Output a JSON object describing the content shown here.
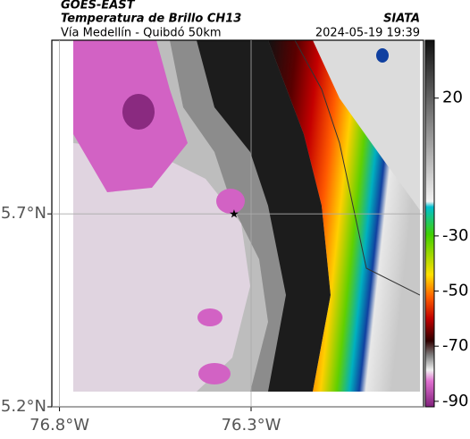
{
  "header": {
    "title": "GOES-EAST",
    "subtitle": "Temperatura de Brillo CH13",
    "location": "Vía Medellín - Quibdó 50km",
    "source": "SIATA",
    "datetime": "2024-05-19 19:39"
  },
  "map": {
    "xlim": [
      -76.82,
      -75.85
    ],
    "ylim": [
      5.2,
      6.15
    ],
    "xticks": [
      {
        "value": -76.8,
        "label": "76.8°W"
      },
      {
        "value": -76.3,
        "label": "76.3°W"
      }
    ],
    "yticks": [
      {
        "value": 5.2,
        "label": "5.2°N"
      },
      {
        "value": 5.7,
        "label": "5.7°N"
      }
    ],
    "marker": "★"
  },
  "colorbar": {
    "lim": [
      -92,
      41
    ],
    "ticks": [
      20,
      -30,
      -50,
      -70,
      -90
    ]
  }
}
